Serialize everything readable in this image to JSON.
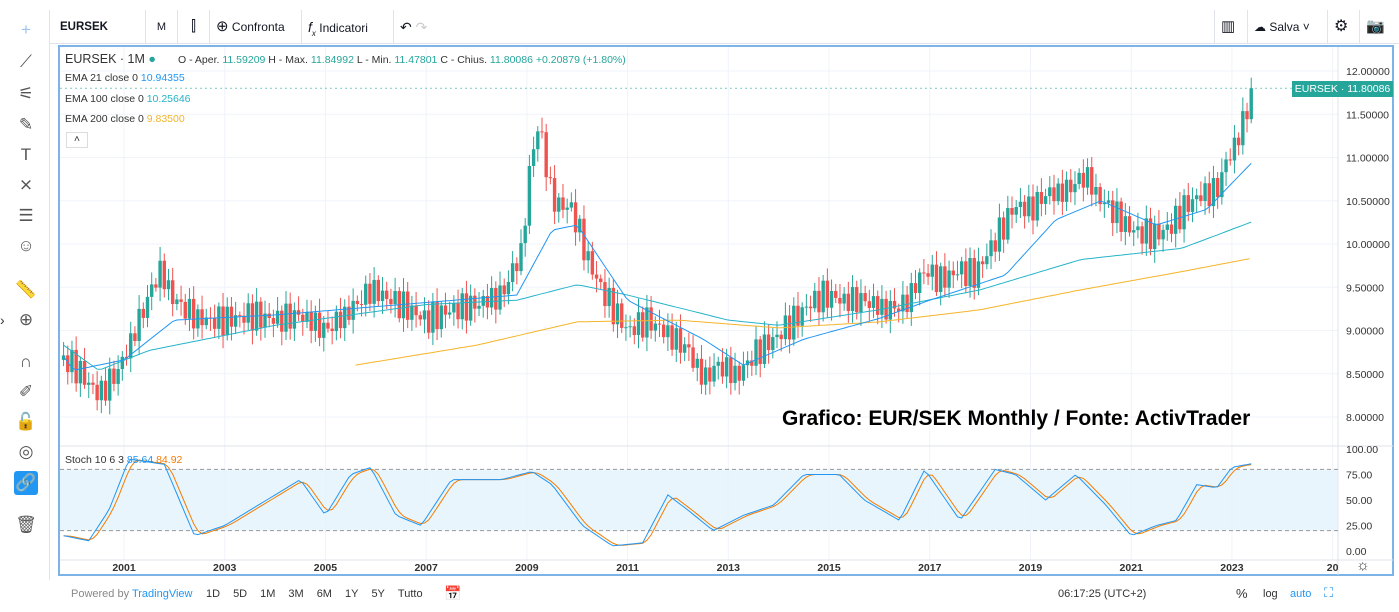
{
  "toolbar": {
    "symbol": "EURSEK",
    "interval": "M",
    "compare": "Confronta",
    "indicators": "Indicatori",
    "save": "Salva"
  },
  "legend": {
    "title": "EURSEK · 1M",
    "o_label": "O - Aper.",
    "o": "11.59209",
    "h_label": "H - Max.",
    "h": "11.84992",
    "l_label": "L - Min.",
    "l": "11.47801",
    "c_label": "C - Chius.",
    "c": "11.80086",
    "chg": "+0.20879 (+1.80%)",
    "ema21_label": "EMA 21 close 0",
    "ema21": "10.94355",
    "ema100_label": "EMA 100 close 0",
    "ema100": "10.25646",
    "ema200_label": "EMA 200 close 0",
    "ema200": "9.83500",
    "stoch_label": "Stoch 10 6 3",
    "stoch_k": "85.64",
    "stoch_d": "84.92"
  },
  "price_badge": "EURSEK · 11.80086",
  "annotation": "Grafico: EUR/SEK Monthly / Fonte: ActivTrader",
  "bottom": {
    "powered": "Powered by ",
    "brand": "TradingView",
    "ranges": [
      "1D",
      "5D",
      "1M",
      "3M",
      "6M",
      "1Y",
      "5Y",
      "Tutto"
    ],
    "time": "06:17:25 (UTC+2)",
    "pct": "%",
    "log": "log",
    "auto": "auto"
  },
  "colors": {
    "up": "#26a69a",
    "down": "#ef5350",
    "ema21": "#2196f3",
    "ema100": "#26b3c9",
    "ema200": "#f5b42a",
    "k": "#2196f3",
    "d": "#f57c00",
    "accent": "#2196f3"
  },
  "chart_data": {
    "type": "candlestick",
    "symbol": "EURSEK",
    "interval": "1M",
    "price_ticks": [
      "12.00000",
      "11.50000",
      "11.00000",
      "10.50000",
      "10.00000",
      "9.50000",
      "9.00000",
      "8.50000",
      "8.00000"
    ],
    "stoch_ticks": [
      "100.00",
      "75.00",
      "50.00",
      "25.00",
      "0.00"
    ],
    "stoch_bands": [
      20,
      80
    ],
    "x_ticks": [
      "2001",
      "2003",
      "2005",
      "2007",
      "2009",
      "2011",
      "2013",
      "2015",
      "2017",
      "2019",
      "2021",
      "2023",
      "20"
    ],
    "close": [
      [
        1999.8,
        8.66
      ],
      [
        2000.0,
        8.6
      ],
      [
        2000.5,
        8.25
      ],
      [
        2000.9,
        8.55
      ],
      [
        2001.3,
        9.12
      ],
      [
        2001.7,
        9.7
      ],
      [
        2002.0,
        9.35
      ],
      [
        2002.5,
        9.12
      ],
      [
        2003.0,
        9.12
      ],
      [
        2003.5,
        9.18
      ],
      [
        2004.0,
        9.12
      ],
      [
        2004.5,
        9.18
      ],
      [
        2005.0,
        9.0
      ],
      [
        2005.5,
        9.24
      ],
      [
        2005.9,
        9.47
      ],
      [
        2006.5,
        9.3
      ],
      [
        2007.0,
        9.12
      ],
      [
        2007.5,
        9.24
      ],
      [
        2008.0,
        9.3
      ],
      [
        2008.5,
        9.41
      ],
      [
        2008.9,
        9.93
      ],
      [
        2009.1,
        11.09
      ],
      [
        2009.25,
        11.38
      ],
      [
        2009.5,
        10.5
      ],
      [
        2009.9,
        10.4
      ],
      [
        2010.25,
        9.75
      ],
      [
        2010.6,
        9.35
      ],
      [
        2011.0,
        9.0
      ],
      [
        2011.4,
        9.12
      ],
      [
        2011.7,
        9.0
      ],
      [
        2012.2,
        8.78
      ],
      [
        2012.5,
        8.43
      ],
      [
        2012.8,
        8.6
      ],
      [
        2013.2,
        8.48
      ],
      [
        2013.5,
        8.72
      ],
      [
        2013.9,
        8.9
      ],
      [
        2014.3,
        9.12
      ],
      [
        2014.6,
        9.3
      ],
      [
        2014.9,
        9.41
      ],
      [
        2015.3,
        9.35
      ],
      [
        2015.7,
        9.35
      ],
      [
        2016.1,
        9.24
      ],
      [
        2016.5,
        9.3
      ],
      [
        2016.9,
        9.7
      ],
      [
        2017.2,
        9.58
      ],
      [
        2017.6,
        9.7
      ],
      [
        2017.9,
        9.64
      ],
      [
        2018.3,
        10.05
      ],
      [
        2018.7,
        10.45
      ],
      [
        2019.0,
        10.4
      ],
      [
        2019.3,
        10.57
      ],
      [
        2019.7,
        10.62
      ],
      [
        2020.1,
        10.8
      ],
      [
        2020.3,
        10.57
      ],
      [
        2020.6,
        10.4
      ],
      [
        2021.0,
        10.16
      ],
      [
        2021.5,
        10.1
      ],
      [
        2021.8,
        10.22
      ],
      [
        2022.1,
        10.45
      ],
      [
        2022.4,
        10.57
      ],
      [
        2022.7,
        10.62
      ],
      [
        2022.9,
        10.97
      ],
      [
        2023.1,
        11.2
      ],
      [
        2023.3,
        11.55
      ],
      [
        2023.4,
        11.80086
      ]
    ],
    "ema21": [
      [
        1999.8,
        8.7
      ],
      [
        2000.0,
        8.54
      ],
      [
        2001.0,
        8.66
      ],
      [
        2002.0,
        9.12
      ],
      [
        2004.0,
        9.18
      ],
      [
        2008.8,
        9.41
      ],
      [
        2009.5,
        10.16
      ],
      [
        2010.0,
        10.22
      ],
      [
        2011.0,
        9.35
      ],
      [
        2012.5,
        8.9
      ],
      [
        2013.3,
        8.6
      ],
      [
        2014.5,
        8.9
      ],
      [
        2016.0,
        9.14
      ],
      [
        2017.0,
        9.35
      ],
      [
        2018.5,
        9.64
      ],
      [
        2019.5,
        10.28
      ],
      [
        2020.4,
        10.5
      ],
      [
        2021.5,
        10.22
      ],
      [
        2022.5,
        10.4
      ],
      [
        2023.4,
        10.94355
      ]
    ],
    "ema100": [
      [
        1999.8,
        8.83
      ],
      [
        2000.5,
        8.54
      ],
      [
        2001.5,
        8.77
      ],
      [
        2004.0,
        9.06
      ],
      [
        2007.0,
        9.3
      ],
      [
        2008.8,
        9.35
      ],
      [
        2010.0,
        9.53
      ],
      [
        2011.0,
        9.41
      ],
      [
        2013.0,
        9.12
      ],
      [
        2014.0,
        9.06
      ],
      [
        2016.0,
        9.24
      ],
      [
        2018.0,
        9.47
      ],
      [
        2020.0,
        9.82
      ],
      [
        2022.0,
        9.95
      ],
      [
        2023.4,
        10.25646
      ]
    ],
    "ema200": [
      [
        2005.6,
        8.6
      ],
      [
        2008.0,
        8.83
      ],
      [
        2010.0,
        9.1
      ],
      [
        2012.0,
        9.12
      ],
      [
        2014.0,
        9.03
      ],
      [
        2016.0,
        9.1
      ],
      [
        2018.0,
        9.24
      ],
      [
        2020.0,
        9.47
      ],
      [
        2022.0,
        9.68
      ],
      [
        2023.4,
        9.835
      ]
    ],
    "stoch_k": [
      [
        1999.8,
        15
      ],
      [
        2000.3,
        10
      ],
      [
        2000.7,
        40
      ],
      [
        2001.1,
        90
      ],
      [
        2001.8,
        85
      ],
      [
        2002.4,
        15
      ],
      [
        2003.0,
        25
      ],
      [
        2004.0,
        55
      ],
      [
        2004.5,
        70
      ],
      [
        2005.0,
        35
      ],
      [
        2005.5,
        75
      ],
      [
        2005.9,
        82
      ],
      [
        2006.4,
        35
      ],
      [
        2006.9,
        25
      ],
      [
        2007.5,
        70
      ],
      [
        2008.5,
        70
      ],
      [
        2009.1,
        78
      ],
      [
        2009.5,
        65
      ],
      [
        2010.1,
        25
      ],
      [
        2010.7,
        5
      ],
      [
        2011.3,
        8
      ],
      [
        2011.8,
        55
      ],
      [
        2012.2,
        40
      ],
      [
        2012.7,
        20
      ],
      [
        2013.3,
        35
      ],
      [
        2013.9,
        45
      ],
      [
        2014.5,
        75
      ],
      [
        2015.2,
        75
      ],
      [
        2015.7,
        50
      ],
      [
        2016.4,
        30
      ],
      [
        2016.9,
        80
      ],
      [
        2017.6,
        30
      ],
      [
        2018.3,
        80
      ],
      [
        2018.7,
        75
      ],
      [
        2019.3,
        50
      ],
      [
        2019.9,
        75
      ],
      [
        2020.5,
        45
      ],
      [
        2021.0,
        15
      ],
      [
        2021.5,
        25
      ],
      [
        2021.9,
        30
      ],
      [
        2022.3,
        65
      ],
      [
        2022.7,
        62
      ],
      [
        2023.0,
        82
      ],
      [
        2023.4,
        85.64
      ]
    ]
  }
}
